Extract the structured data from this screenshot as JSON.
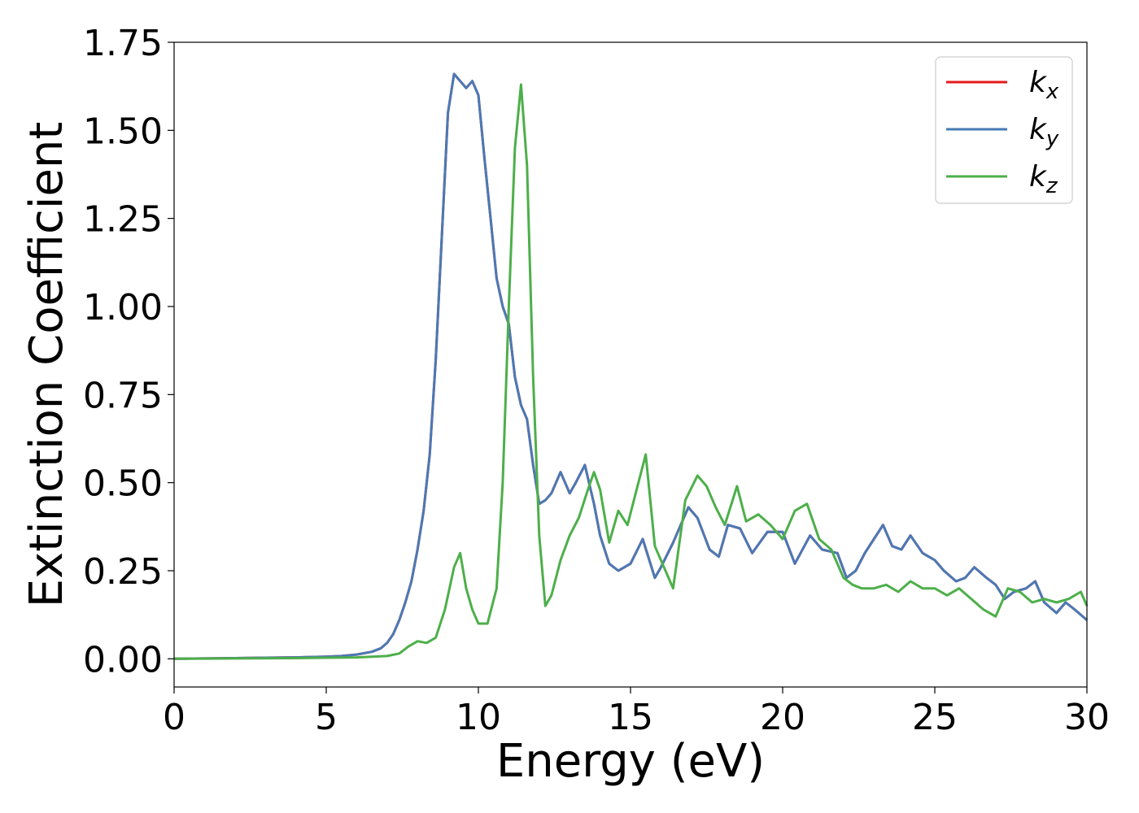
{
  "chart_data": {
    "type": "line",
    "title": "",
    "xlabel": "Energy (eV)",
    "ylabel": "Extinction Coefficient",
    "xlim": [
      0,
      30
    ],
    "ylim": [
      -0.08,
      1.75
    ],
    "xticks": [
      0,
      5,
      10,
      15,
      20,
      25,
      30
    ],
    "xtick_labels": [
      "0",
      "5",
      "10",
      "15",
      "20",
      "25",
      "30"
    ],
    "yticks": [
      0.0,
      0.25,
      0.5,
      0.75,
      1.0,
      1.25,
      1.5,
      1.75
    ],
    "ytick_labels": [
      "0.00",
      "0.25",
      "0.50",
      "0.75",
      "1.00",
      "1.25",
      "1.50",
      "1.75"
    ],
    "grid": false,
    "legend_position": "top-right",
    "series": [
      {
        "name": "k_x",
        "label_main": "k",
        "label_sub": "x",
        "color": "#e41a1c",
        "x": [
          0,
          1,
          2,
          3,
          4,
          5,
          5.5,
          6,
          6.5,
          6.8,
          7,
          7.2,
          7.4,
          7.6,
          7.8,
          8,
          8.2,
          8.4,
          8.6,
          8.8,
          9,
          9.2,
          9.4,
          9.6,
          9.8,
          10,
          10.2,
          10.4,
          10.6,
          10.8,
          11,
          11.2,
          11.4,
          11.6,
          11.8,
          12,
          12.2,
          12.4,
          12.7,
          13,
          13.2,
          13.5,
          13.8,
          14,
          14.3,
          14.6,
          15,
          15.4,
          15.8,
          16,
          16.4,
          16.9,
          17.2,
          17.6,
          17.9,
          18.2,
          18.6,
          19,
          19.5,
          20,
          20.4,
          20.9,
          21.3,
          21.8,
          22.1,
          22.4,
          22.7,
          23,
          23.3,
          23.6,
          23.9,
          24.2,
          24.6,
          25,
          25.3,
          25.7,
          26,
          26.3,
          26.7,
          27,
          27.3,
          27.6,
          28,
          28.3,
          28.6,
          29,
          29.3,
          29.6,
          30
        ],
        "values": [
          0,
          0.001,
          0.002,
          0.003,
          0.004,
          0.006,
          0.008,
          0.012,
          0.02,
          0.03,
          0.045,
          0.07,
          0.11,
          0.16,
          0.22,
          0.31,
          0.42,
          0.58,
          0.85,
          1.2,
          1.55,
          1.66,
          1.64,
          1.62,
          1.64,
          1.6,
          1.42,
          1.25,
          1.08,
          1.0,
          0.95,
          0.8,
          0.72,
          0.68,
          0.55,
          0.44,
          0.45,
          0.47,
          0.53,
          0.47,
          0.5,
          0.55,
          0.44,
          0.35,
          0.27,
          0.25,
          0.27,
          0.34,
          0.23,
          0.26,
          0.33,
          0.43,
          0.4,
          0.31,
          0.29,
          0.38,
          0.37,
          0.3,
          0.36,
          0.36,
          0.27,
          0.35,
          0.31,
          0.3,
          0.23,
          0.25,
          0.3,
          0.34,
          0.38,
          0.32,
          0.31,
          0.35,
          0.3,
          0.28,
          0.25,
          0.22,
          0.23,
          0.26,
          0.23,
          0.21,
          0.17,
          0.19,
          0.2,
          0.22,
          0.16,
          0.13,
          0.16,
          0.14,
          0.11
        ]
      },
      {
        "name": "k_y",
        "label_main": "k",
        "label_sub": "y",
        "color": "#4a79b5",
        "x": [
          0,
          1,
          2,
          3,
          4,
          5,
          5.5,
          6,
          6.5,
          6.8,
          7,
          7.2,
          7.4,
          7.6,
          7.8,
          8,
          8.2,
          8.4,
          8.6,
          8.8,
          9,
          9.2,
          9.4,
          9.6,
          9.8,
          10,
          10.2,
          10.4,
          10.6,
          10.8,
          11,
          11.2,
          11.4,
          11.6,
          11.8,
          12,
          12.2,
          12.4,
          12.7,
          13,
          13.2,
          13.5,
          13.8,
          14,
          14.3,
          14.6,
          15,
          15.4,
          15.8,
          16,
          16.4,
          16.9,
          17.2,
          17.6,
          17.9,
          18.2,
          18.6,
          19,
          19.5,
          20,
          20.4,
          20.9,
          21.3,
          21.8,
          22.1,
          22.4,
          22.7,
          23,
          23.3,
          23.6,
          23.9,
          24.2,
          24.6,
          25,
          25.3,
          25.7,
          26,
          26.3,
          26.7,
          27,
          27.3,
          27.6,
          28,
          28.3,
          28.6,
          29,
          29.3,
          29.6,
          30
        ],
        "values": [
          0,
          0.001,
          0.002,
          0.003,
          0.004,
          0.006,
          0.008,
          0.012,
          0.02,
          0.03,
          0.045,
          0.07,
          0.11,
          0.16,
          0.22,
          0.31,
          0.42,
          0.58,
          0.85,
          1.2,
          1.55,
          1.66,
          1.64,
          1.62,
          1.64,
          1.6,
          1.42,
          1.25,
          1.08,
          1.0,
          0.95,
          0.8,
          0.72,
          0.68,
          0.55,
          0.44,
          0.45,
          0.47,
          0.53,
          0.47,
          0.5,
          0.55,
          0.44,
          0.35,
          0.27,
          0.25,
          0.27,
          0.34,
          0.23,
          0.26,
          0.33,
          0.43,
          0.4,
          0.31,
          0.29,
          0.38,
          0.37,
          0.3,
          0.36,
          0.36,
          0.27,
          0.35,
          0.31,
          0.3,
          0.23,
          0.25,
          0.3,
          0.34,
          0.38,
          0.32,
          0.31,
          0.35,
          0.3,
          0.28,
          0.25,
          0.22,
          0.23,
          0.26,
          0.23,
          0.21,
          0.17,
          0.19,
          0.2,
          0.22,
          0.16,
          0.13,
          0.16,
          0.14,
          0.11
        ]
      },
      {
        "name": "k_z",
        "label_main": "k",
        "label_sub": "z",
        "color": "#4daf4a",
        "x": [
          0,
          2,
          4,
          6,
          7,
          7.4,
          7.7,
          8,
          8.3,
          8.6,
          8.9,
          9.2,
          9.4,
          9.6,
          9.8,
          10,
          10.3,
          10.6,
          10.8,
          11,
          11.2,
          11.4,
          11.6,
          11.8,
          12,
          12.2,
          12.4,
          12.7,
          13,
          13.3,
          13.6,
          13.8,
          14,
          14.3,
          14.6,
          14.9,
          15.2,
          15.5,
          15.8,
          16.1,
          16.4,
          16.8,
          17.2,
          17.5,
          17.8,
          18.1,
          18.5,
          18.8,
          19.2,
          19.6,
          20,
          20.4,
          20.8,
          21.2,
          21.6,
          22,
          22.3,
          22.6,
          23,
          23.4,
          23.8,
          24.2,
          24.6,
          25,
          25.4,
          25.8,
          26.2,
          26.6,
          27,
          27.4,
          27.8,
          28.2,
          28.6,
          29,
          29.4,
          29.8,
          30
        ],
        "values": [
          0,
          0.001,
          0.002,
          0.004,
          0.008,
          0.015,
          0.035,
          0.05,
          0.045,
          0.06,
          0.14,
          0.26,
          0.3,
          0.2,
          0.14,
          0.1,
          0.1,
          0.2,
          0.5,
          1.0,
          1.45,
          1.63,
          1.4,
          0.8,
          0.35,
          0.15,
          0.18,
          0.28,
          0.35,
          0.4,
          0.48,
          0.53,
          0.48,
          0.33,
          0.42,
          0.38,
          0.48,
          0.58,
          0.32,
          0.26,
          0.2,
          0.45,
          0.52,
          0.49,
          0.43,
          0.38,
          0.49,
          0.39,
          0.41,
          0.38,
          0.34,
          0.42,
          0.44,
          0.34,
          0.31,
          0.23,
          0.21,
          0.2,
          0.2,
          0.21,
          0.19,
          0.22,
          0.2,
          0.2,
          0.18,
          0.2,
          0.17,
          0.14,
          0.12,
          0.2,
          0.19,
          0.16,
          0.17,
          0.16,
          0.17,
          0.19,
          0.15
        ]
      }
    ]
  }
}
